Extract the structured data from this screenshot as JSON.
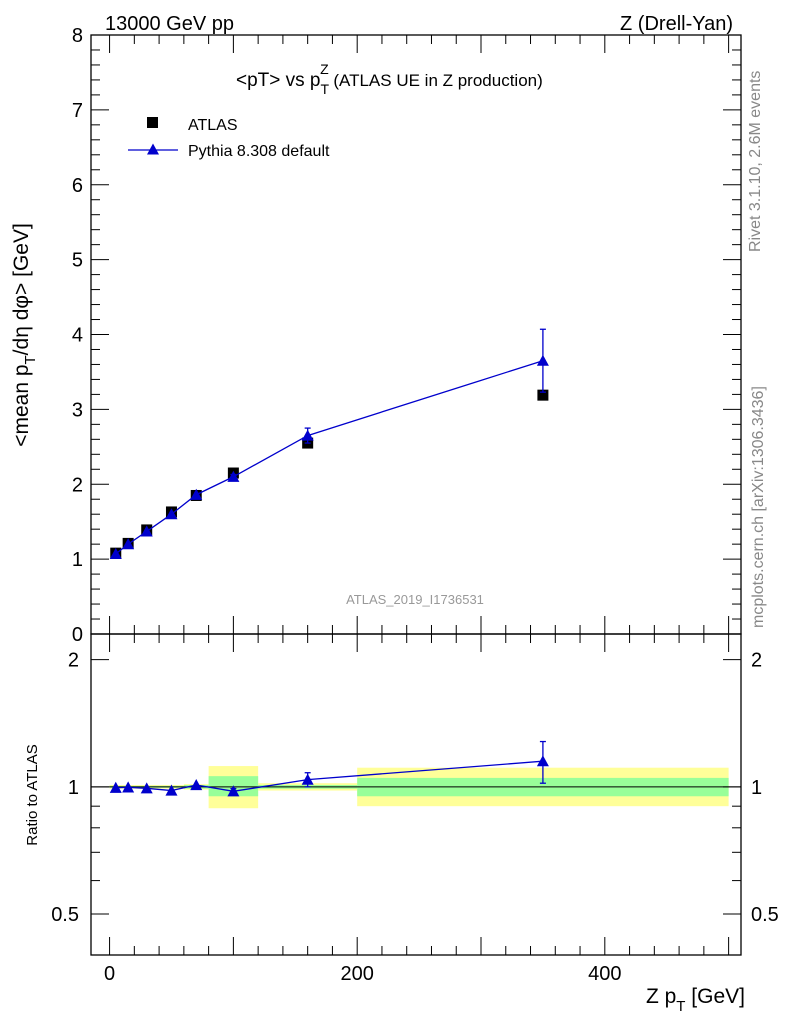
{
  "header": {
    "left": "13000 GeV pp",
    "right": "Z (Drell-Yan)"
  },
  "side_labels": {
    "rivet": "Rivet 3.1.10,  2.6M events",
    "mcplots": "mcplots.cern.ch [arXiv:1306.3436]"
  },
  "colors": {
    "data": "#000000",
    "mc": "#0000cc",
    "band_inner": "#99ff99",
    "band_outer": "#ffff99"
  },
  "chart_data": [
    {
      "type": "scatter",
      "title_main": "<pT> vs p",
      "title_sup": "Z",
      "title_sub": "T",
      "title_tail": " (ATLAS UE in Z production)",
      "ylabel_pre": "<mean p",
      "ylabel_sub": "T",
      "ylabel_post": "/dη dφ> [GeV]",
      "watermark": "ATLAS_2019_I1736531",
      "xlim": [
        -15,
        510
      ],
      "ylim": [
        0,
        8
      ],
      "yticks": [
        0,
        1,
        2,
        3,
        4,
        5,
        6,
        7,
        8
      ],
      "ytick_labels": [
        "0",
        "1",
        "2",
        "3",
        "4",
        "5",
        "6",
        "7",
        "8"
      ],
      "legend_position": "top-left",
      "series": [
        {
          "name": "ATLAS",
          "marker": "square",
          "x": [
            5,
            15,
            30,
            50,
            70,
            100,
            160,
            350
          ],
          "y": [
            1.08,
            1.21,
            1.39,
            1.63,
            1.85,
            2.15,
            2.55,
            3.19
          ]
        },
        {
          "name": "Pythia 8.308 default",
          "marker": "triangle",
          "x": [
            5,
            15,
            30,
            50,
            70,
            100,
            160,
            350
          ],
          "y": [
            1.07,
            1.2,
            1.37,
            1.6,
            1.86,
            2.1,
            2.65,
            3.65
          ],
          "yerr": [
            0.01,
            0.01,
            0.01,
            0.02,
            0.02,
            0.03,
            0.1,
            0.42
          ]
        }
      ]
    },
    {
      "type": "scatter",
      "ylabel": "Ratio to ATLAS",
      "xlabel_pre": "Z p",
      "xlabel_sub": "T",
      "xlabel_post": " [GeV]",
      "xlim": [
        -15,
        510
      ],
      "ylim": [
        0.4,
        2.3
      ],
      "log_y": true,
      "yticks": [
        0.5,
        1,
        2
      ],
      "ytick_labels": [
        "0.5",
        "1",
        "2"
      ],
      "xticks": [
        0,
        200,
        400
      ],
      "xtick_labels": [
        "0",
        "200",
        "400"
      ],
      "bands": [
        {
          "x0": 0,
          "x1": 10,
          "inner": [
            0.995,
            1.005
          ],
          "outer": [
            0.99,
            1.01
          ]
        },
        {
          "x0": 10,
          "x1": 20,
          "inner": [
            0.995,
            1.005
          ],
          "outer": [
            0.99,
            1.01
          ]
        },
        {
          "x0": 20,
          "x1": 40,
          "inner": [
            0.995,
            1.005
          ],
          "outer": [
            0.99,
            1.01
          ]
        },
        {
          "x0": 40,
          "x1": 60,
          "inner": [
            0.995,
            1.005
          ],
          "outer": [
            0.99,
            1.01
          ]
        },
        {
          "x0": 60,
          "x1": 80,
          "inner": [
            0.99,
            1.01
          ],
          "outer": [
            0.985,
            1.015
          ]
        },
        {
          "x0": 80,
          "x1": 120,
          "inner": [
            0.95,
            1.06
          ],
          "outer": [
            0.89,
            1.12
          ]
        },
        {
          "x0": 120,
          "x1": 200,
          "inner": [
            0.99,
            1.01
          ],
          "outer": [
            0.98,
            1.02
          ]
        },
        {
          "x0": 200,
          "x1": 500,
          "inner": [
            0.95,
            1.05
          ],
          "outer": [
            0.9,
            1.11
          ]
        }
      ],
      "series": [
        {
          "name": "Pythia 8.308 default",
          "marker": "triangle",
          "x": [
            5,
            15,
            30,
            50,
            70,
            100,
            160,
            350
          ],
          "y": [
            0.995,
            0.997,
            0.992,
            0.98,
            1.01,
            0.976,
            1.04,
            1.15
          ],
          "yerr": [
            0.008,
            0.008,
            0.008,
            0.01,
            0.01,
            0.015,
            0.04,
            0.13
          ]
        }
      ]
    }
  ]
}
